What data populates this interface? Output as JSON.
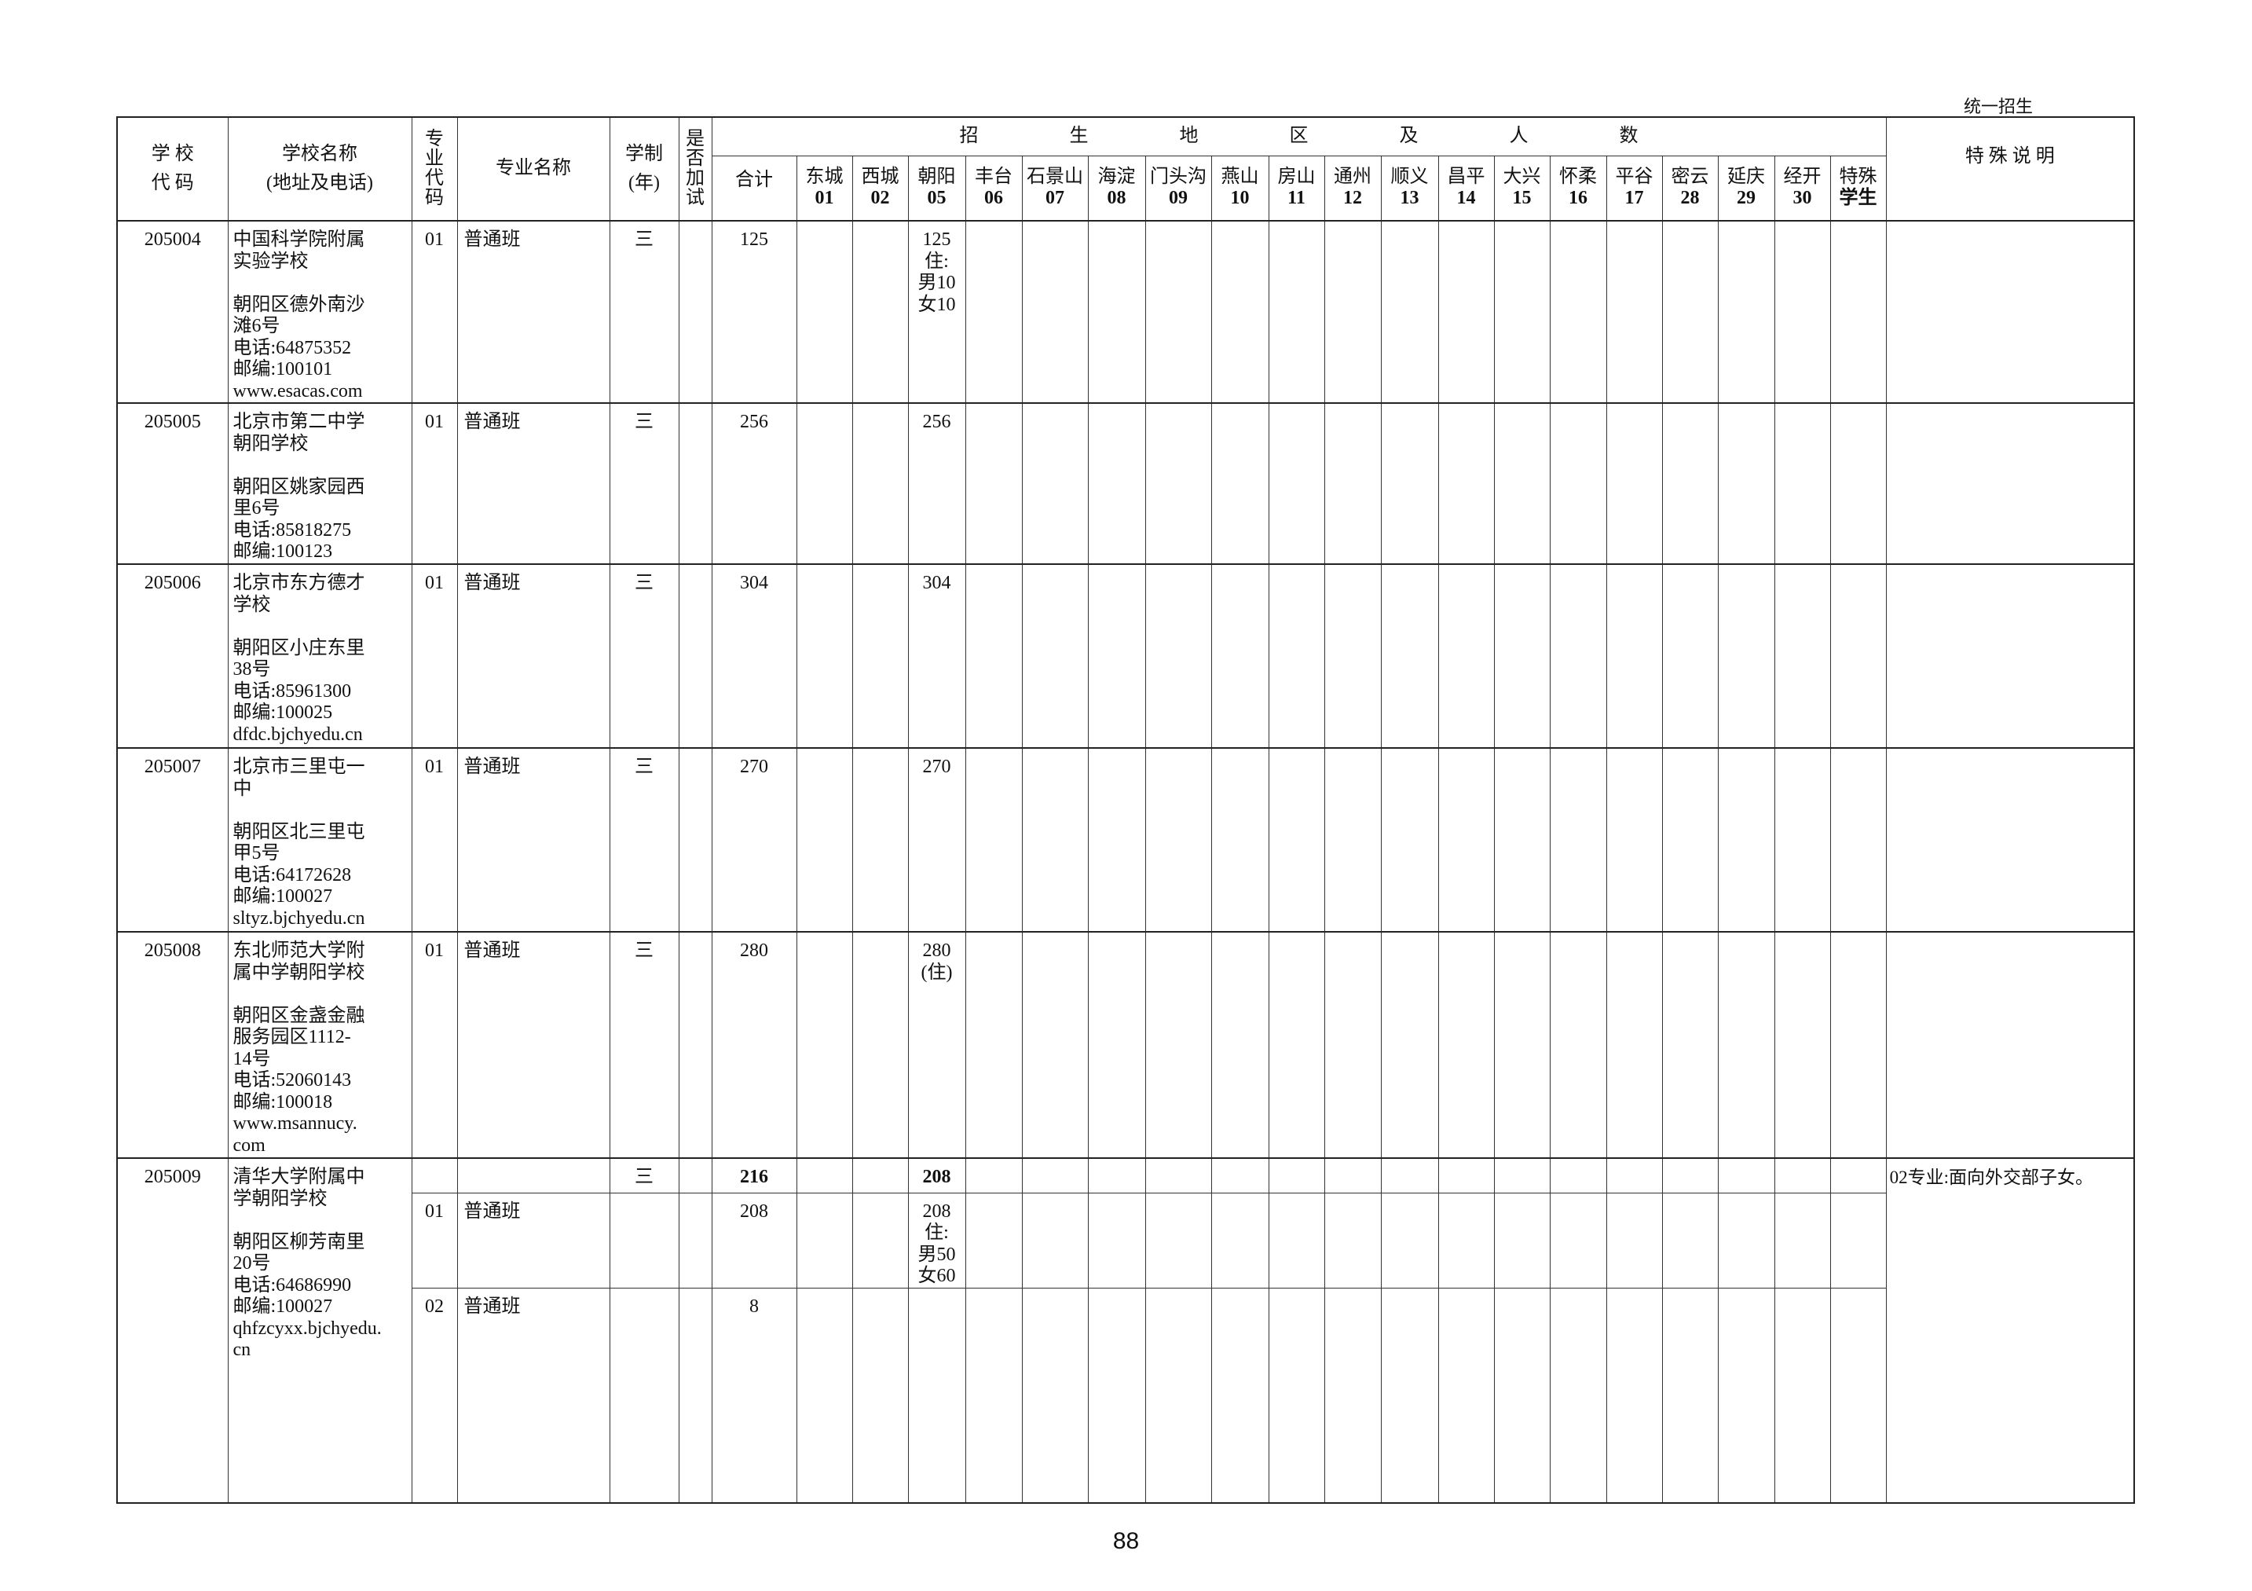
{
  "corner_label": "统一招生",
  "page_number": "88",
  "header": {
    "school_code": [
      "学 校",
      "代 码"
    ],
    "school_name": [
      "学校名称",
      "(地址及电话)"
    ],
    "major_code": "专\n业\n代\n码",
    "major_name": "专业名称",
    "years": [
      "学制",
      "(年)"
    ],
    "extra_test": "是\n否\n加\n试",
    "region_banner": [
      "招",
      "生",
      "地",
      "区",
      "及",
      "人",
      "数"
    ],
    "total": "合计",
    "regions": [
      {
        "name": "东城",
        "code": "01"
      },
      {
        "name": "西城",
        "code": "02"
      },
      {
        "name": "朝阳",
        "code": "05"
      },
      {
        "name": "丰台",
        "code": "06"
      },
      {
        "name": "石景山",
        "code": "07"
      },
      {
        "name": "海淀",
        "code": "08"
      },
      {
        "name": "门头沟",
        "code": "09"
      },
      {
        "name": "燕山",
        "code": "10"
      },
      {
        "name": "房山",
        "code": "11"
      },
      {
        "name": "通州",
        "code": "12"
      },
      {
        "name": "顺义",
        "code": "13"
      },
      {
        "name": "昌平",
        "code": "14"
      },
      {
        "name": "大兴",
        "code": "15"
      },
      {
        "name": "怀柔",
        "code": "16"
      },
      {
        "name": "平谷",
        "code": "17"
      },
      {
        "name": "密云",
        "code": "28"
      },
      {
        "name": "延庆",
        "code": "29"
      },
      {
        "name": "经开",
        "code": "30"
      },
      {
        "name": "特殊",
        "code": "学生"
      }
    ],
    "notes": "特 殊 说 明"
  },
  "schools": [
    {
      "code": "205004",
      "name": "中国科学院附属\n实验学校\n\n朝阳区德外南沙\n滩6号\n电话:64875352\n邮编:100101\nwww.esacas.com",
      "note": "",
      "rows": [
        {
          "major_code": "01",
          "major": "普通班",
          "years": "三",
          "extra": "",
          "total": "125",
          "bold": false,
          "regions": [
            "",
            "",
            "125\n住:\n男10\n女10",
            "",
            "",
            "",
            "",
            "",
            "",
            "",
            "",
            "",
            "",
            "",
            "",
            "",
            "",
            "",
            ""
          ]
        }
      ]
    },
    {
      "code": "205005",
      "name": "北京市第二中学\n朝阳学校\n\n朝阳区姚家园西\n里6号\n电话:85818275\n邮编:100123",
      "note": "",
      "rows": [
        {
          "major_code": "01",
          "major": "普通班",
          "years": "三",
          "extra": "",
          "total": "256",
          "bold": false,
          "regions": [
            "",
            "",
            "256",
            "",
            "",
            "",
            "",
            "",
            "",
            "",
            "",
            "",
            "",
            "",
            "",
            "",
            "",
            "",
            ""
          ]
        }
      ]
    },
    {
      "code": "205006",
      "name": "北京市东方德才\n学校\n\n朝阳区小庄东里\n38号\n电话:85961300\n邮编:100025\ndfdc.bjchyedu.cn",
      "note": "",
      "rows": [
        {
          "major_code": "01",
          "major": "普通班",
          "years": "三",
          "extra": "",
          "total": "304",
          "bold": false,
          "regions": [
            "",
            "",
            "304",
            "",
            "",
            "",
            "",
            "",
            "",
            "",
            "",
            "",
            "",
            "",
            "",
            "",
            "",
            "",
            ""
          ]
        }
      ]
    },
    {
      "code": "205007",
      "name": "北京市三里屯一\n中\n\n朝阳区北三里屯\n甲5号\n电话:64172628\n邮编:100027\nsltyz.bjchyedu.cn",
      "note": "",
      "rows": [
        {
          "major_code": "01",
          "major": "普通班",
          "years": "三",
          "extra": "",
          "total": "270",
          "bold": false,
          "regions": [
            "",
            "",
            "270",
            "",
            "",
            "",
            "",
            "",
            "",
            "",
            "",
            "",
            "",
            "",
            "",
            "",
            "",
            "",
            ""
          ]
        }
      ]
    },
    {
      "code": "205008",
      "name": "东北师范大学附\n属中学朝阳学校\n\n朝阳区金盏金融\n服务园区1112-\n14号\n电话:52060143\n邮编:100018\nwww.msannucy.\ncom",
      "note": "",
      "rows": [
        {
          "major_code": "01",
          "major": "普通班",
          "years": "三",
          "extra": "",
          "total": "280",
          "bold": false,
          "regions": [
            "",
            "",
            "280\n(住)",
            "",
            "",
            "",
            "",
            "",
            "",
            "",
            "",
            "",
            "",
            "",
            "",
            "",
            "",
            "",
            ""
          ]
        }
      ]
    },
    {
      "code": "205009",
      "name": "清华大学附属中\n学朝阳学校\n\n朝阳区柳芳南里\n20号\n电话:64686990\n邮编:100027\nqhfzcyxx.bjchyedu.\ncn",
      "note": "02专业:面向外交部子女。",
      "rows": [
        {
          "major_code": "",
          "major": "",
          "years": "三",
          "extra": "",
          "total": "216",
          "bold": true,
          "regions": [
            "",
            "",
            "208",
            "",
            "",
            "",
            "",
            "",
            "",
            "",
            "",
            "",
            "",
            "",
            "",
            "",
            "",
            "",
            ""
          ]
        },
        {
          "major_code": "01",
          "major": "普通班",
          "years": "",
          "extra": "",
          "total": "208",
          "bold": false,
          "regions": [
            "",
            "",
            "208\n住:\n男50\n女60",
            "",
            "",
            "",
            "",
            "",
            "",
            "",
            "",
            "",
            "",
            "",
            "",
            "",
            "",
            "",
            ""
          ]
        },
        {
          "major_code": "02",
          "major": "普通班",
          "years": "",
          "extra": "",
          "total": "8",
          "bold": false,
          "regions": [
            "",
            "",
            "",
            "",
            "",
            "",
            "",
            "",
            "",
            "",
            "",
            "",
            "",
            "",
            "",
            "",
            "",
            "",
            ""
          ]
        }
      ]
    }
  ]
}
